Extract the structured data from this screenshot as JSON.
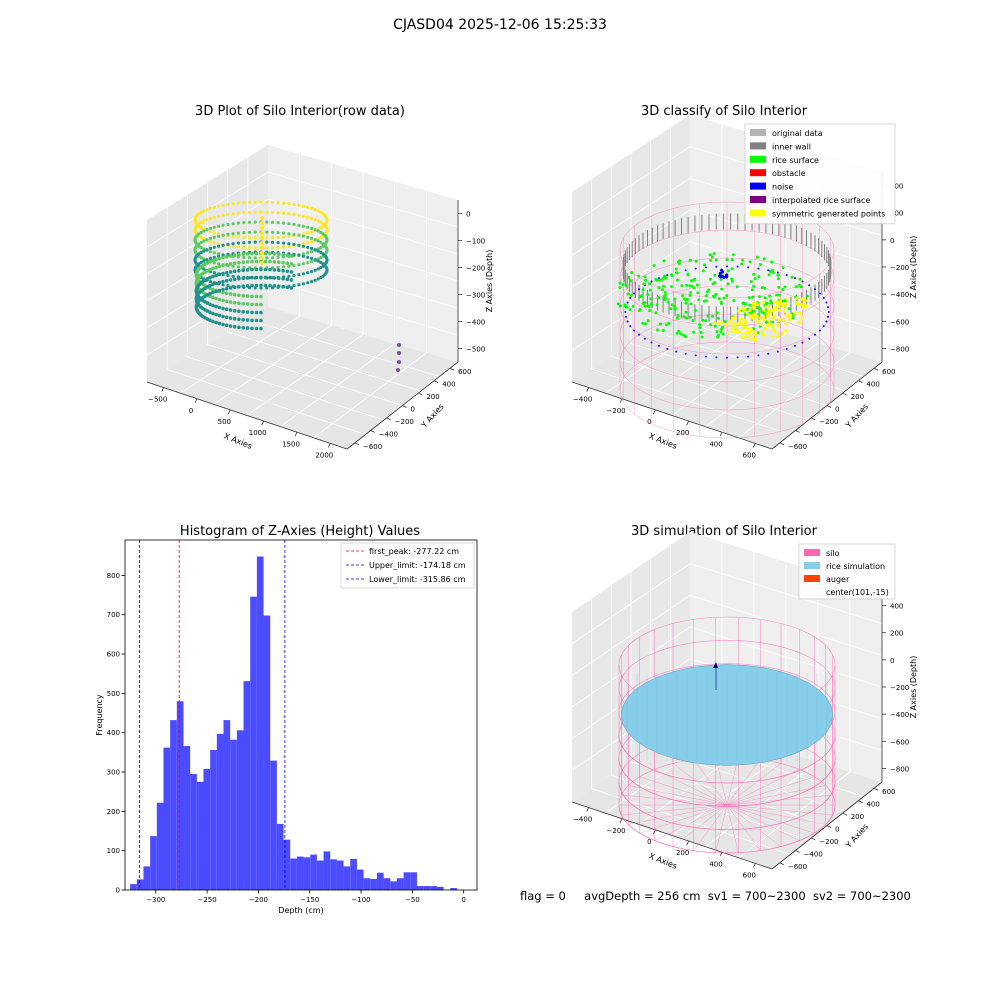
{
  "suptitle": "CJASD04 2025-12-06 15:25:33",
  "footer": {
    "flag": "flag = 0",
    "avg_depth": "avgDepth = 256 cm",
    "sv1": "sv1 = 700~2300",
    "sv2": "sv2 = 700~2300"
  },
  "panels": {
    "raw": {
      "title": "3D Plot of Silo Interior(row data)",
      "xlabel": "X Axies",
      "ylabel": "Y Axies",
      "zlabel": "Z Axies (Depth)",
      "xticks": [
        "−500",
        "0",
        "500",
        "1000",
        "1500",
        "2000"
      ],
      "yticks": [
        "600",
        "400",
        "200",
        "0",
        "−200",
        "−400",
        "−600"
      ],
      "zticks": [
        "0",
        "−100",
        "−200",
        "−300",
        "−400",
        "−500"
      ],
      "colormap_colors": [
        "#440154",
        "#21918c",
        "#5ec962",
        "#fde725"
      ]
    },
    "classify": {
      "title": "3D classify of Silo Interior",
      "xlabel": "X Axies",
      "ylabel": "Y Axies",
      "zlabel": "Z Axies (Depth)",
      "xticks": [
        "−400",
        "−200",
        "0",
        "200",
        "400",
        "600"
      ],
      "yticks": [
        "600",
        "400",
        "200",
        "0",
        "−200",
        "−400",
        "−600"
      ],
      "zticks": [
        "400",
        "200",
        "0",
        "−200",
        "−400",
        "−600",
        "−800"
      ],
      "legend": [
        {
          "label": "original data",
          "color": "#b3b3b3"
        },
        {
          "label": "inner wall",
          "color": "#808080"
        },
        {
          "label": "rice surface",
          "color": "#00ff00"
        },
        {
          "label": "obstacle",
          "color": "#ff0000"
        },
        {
          "label": "noise",
          "color": "#0000ff"
        },
        {
          "label": "interpolated rice surface",
          "color": "#800080"
        },
        {
          "label": "symmetric generated points",
          "color": "#ffff00"
        }
      ],
      "mesh_color": "#ff69b4"
    },
    "simulation": {
      "title": "3D simulation of Silo Interior",
      "xlabel": "X Axies",
      "ylabel": "Y Axies",
      "zlabel": "Z Axies (Depth)",
      "xticks": [
        "−400",
        "−200",
        "0",
        "200",
        "400",
        "600"
      ],
      "yticks": [
        "600",
        "400",
        "200",
        "0",
        "−200",
        "−400",
        "−600"
      ],
      "zticks": [
        "400",
        "200",
        "0",
        "−200",
        "−400",
        "−600",
        "−800"
      ],
      "legend": [
        {
          "label": "silo",
          "color": "#ff69b4"
        },
        {
          "label": "rice simulation",
          "color": "#87ceeb"
        },
        {
          "label": "auger",
          "color": "#ff4500"
        },
        {
          "label": "center(101,-15)",
          "color": ""
        }
      ]
    }
  },
  "chart_data": {
    "type": "bar",
    "title": "Histogram of Z-Axies (Height) Values",
    "xlabel": "Depth (cm)",
    "ylabel": "Frequency",
    "xlim": [
      -330,
      13
    ],
    "ylim": [
      0,
      890
    ],
    "bar_color": "#4b4bff",
    "bin_width": 6.5,
    "bins_left_edge": [
      -325,
      -318.5,
      -312,
      -305.5,
      -299,
      -292.5,
      -286,
      -279.5,
      -273,
      -266.5,
      -260,
      -253.5,
      -247,
      -240.5,
      -234,
      -227.5,
      -221,
      -214.5,
      -208,
      -201.5,
      -195,
      -188.5,
      -182,
      -175.5,
      -169,
      -162.5,
      -156,
      -149.5,
      -143,
      -136.5,
      -130,
      -123.5,
      -117,
      -110.5,
      -104,
      -97.5,
      -91,
      -84.5,
      -78,
      -71.5,
      -65,
      -58.5,
      -52,
      -45.5,
      -39,
      -32.5,
      -26,
      -19.5,
      -13,
      -6.5,
      0
    ],
    "values": [
      15,
      27,
      60,
      137,
      222,
      362,
      432,
      480,
      366,
      295,
      275,
      308,
      356,
      397,
      432,
      382,
      406,
      531,
      746,
      848,
      698,
      329,
      168,
      128,
      80,
      85,
      83,
      90,
      75,
      98,
      78,
      75,
      60,
      79,
      52,
      30,
      28,
      44,
      30,
      22,
      30,
      45,
      45,
      10,
      10,
      10,
      8,
      0,
      5,
      0,
      0
    ],
    "xticks": [
      -300,
      -250,
      -200,
      -150,
      -100,
      -50,
      0
    ],
    "yticks": [
      0,
      100,
      200,
      300,
      400,
      500,
      600,
      700,
      800
    ],
    "vlines": [
      {
        "label": "first_peak: -277.22 cm",
        "x": -277.22,
        "color": "#ff0000"
      },
      {
        "label": "Upper_limit: -174.18 cm",
        "x": -174.18,
        "color": "#0000ff"
      },
      {
        "label": "Lower_limit: -315.86 cm",
        "x": -315.86,
        "color": "#0000ff"
      }
    ],
    "legend_position": "top-right"
  }
}
